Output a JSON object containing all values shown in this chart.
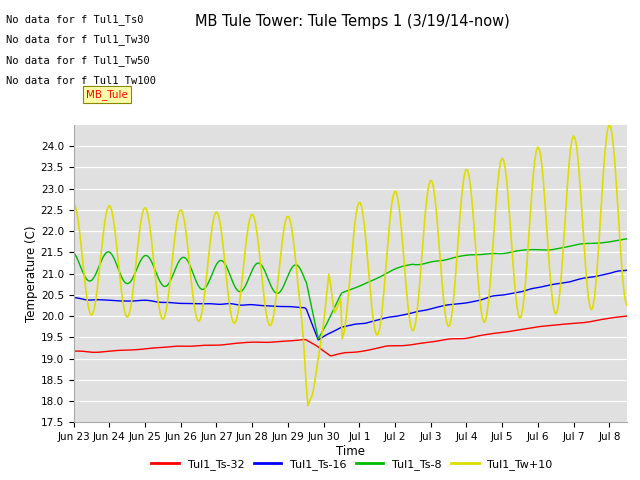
{
  "title": "MB Tule Tower: Tule Temps 1 (3/19/14-now)",
  "xlabel": "Time",
  "ylabel": "Temperature (C)",
  "ylim": [
    17.5,
    24.5
  ],
  "yticks": [
    17.5,
    18.0,
    18.5,
    19.0,
    19.5,
    20.0,
    20.5,
    21.0,
    21.5,
    22.0,
    22.5,
    23.0,
    23.5,
    24.0
  ],
  "bg_color": "#e0e0e0",
  "fig_bg": "#ffffff",
  "no_data_labels": [
    "No data for f Tul1_Ts0",
    "No data for f Tul1_Tw30",
    "No data for f Tul1_Tw50",
    "No data for f Tul1_Tw100"
  ],
  "xticklabels": [
    "Jun 23",
    "Jun 24",
    "Jun 25",
    "Jun 26",
    "Jun 27",
    "Jun 28",
    "Jun 29",
    "Jun 30",
    "Jul 1",
    "Jul 2",
    "Jul 3",
    "Jul 4",
    "Jul 5",
    "Jul 6",
    "Jul 7",
    "Jul 8"
  ]
}
